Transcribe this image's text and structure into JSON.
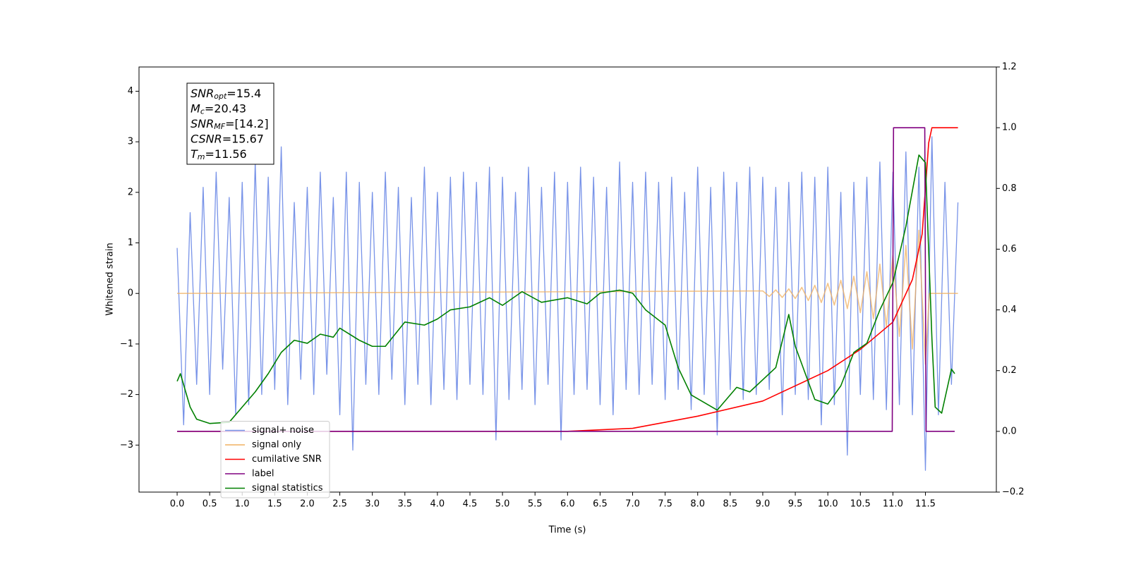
{
  "chart_data": {
    "type": "line",
    "x_label": "Time (s)",
    "y_label": "Whitened strain",
    "xlim": [
      -0.586,
      12.59
    ],
    "ylim": [
      -3.93,
      4.48
    ],
    "y2lim": [
      -0.2,
      1.2
    ],
    "xticks": [
      {
        "value": 0,
        "label": "0.0"
      },
      0.5,
      {
        "value": 1,
        "label": "1.0"
      },
      1.5,
      {
        "value": 2,
        "label": "2.0"
      },
      2.5,
      {
        "value": 3,
        "label": "3.0"
      },
      3.5,
      {
        "value": 4,
        "label": "4.0"
      },
      4.5,
      {
        "value": 5,
        "label": "5.0"
      },
      5.5,
      {
        "value": 6,
        "label": "6.0"
      },
      6.5,
      {
        "value": 7,
        "label": "7.0"
      },
      7.5,
      {
        "value": 8,
        "label": "8.0"
      },
      8.5,
      {
        "value": 9,
        "label": "9.0"
      },
      9.5,
      {
        "value": 10,
        "label": "10.0"
      },
      10.5,
      {
        "value": 11,
        "label": "11.0"
      },
      11.5
    ],
    "yticks": [
      {
        "value": -3,
        "label": "−3"
      },
      {
        "value": -2,
        "label": "−2"
      },
      {
        "value": -1,
        "label": "−1"
      },
      0,
      1,
      2,
      3,
      4
    ],
    "y2ticks": [
      {
        "value": -0.2,
        "label": "−0.2"
      },
      {
        "value": 0,
        "label": "0.0"
      },
      0.2,
      0.4,
      0.6,
      0.8,
      {
        "value": 1,
        "label": "1.0"
      },
      1.2
    ],
    "legend_loc": "lower left",
    "annotation": {
      "lines": [
        {
          "base": "SNR",
          "sub": "opt",
          "text": "=15.4"
        },
        {
          "base": "M",
          "sub": "c",
          "text": "=20.43"
        },
        {
          "base": "SNR",
          "sub": "MF",
          "text": "=[14.2]"
        },
        {
          "base": "CSNR",
          "text": "=15.67"
        },
        {
          "base": "T",
          "sub": "m",
          "text": "=11.56"
        }
      ]
    },
    "series": [
      {
        "name": "signal+ noise",
        "color": "#7893e8",
        "axis": "y",
        "x": [
          0,
          0.1,
          0.2,
          0.3,
          0.4,
          0.5,
          0.6,
          0.7,
          0.8,
          0.9,
          1,
          1.1,
          1.2,
          1.3,
          1.4,
          1.5,
          1.6,
          1.7,
          1.8,
          1.9,
          2,
          2.1,
          2.2,
          2.3,
          2.4,
          2.5,
          2.6,
          2.7,
          2.8,
          2.9,
          3,
          3.1,
          3.2,
          3.3,
          3.4,
          3.5,
          3.6,
          3.7,
          3.8,
          3.9,
          4,
          4.1,
          4.2,
          4.3,
          4.4,
          4.5,
          4.6,
          4.7,
          4.8,
          4.9,
          5,
          5.1,
          5.2,
          5.3,
          5.4,
          5.5,
          5.6,
          5.7,
          5.8,
          5.9,
          6,
          6.1,
          6.2,
          6.3,
          6.4,
          6.5,
          6.6,
          6.7,
          6.8,
          6.9,
          7,
          7.1,
          7.2,
          7.3,
          7.4,
          7.5,
          7.6,
          7.7,
          7.8,
          7.9,
          8,
          8.1,
          8.2,
          8.3,
          8.4,
          8.5,
          8.6,
          8.7,
          8.8,
          8.9,
          9,
          9.1,
          9.2,
          9.3,
          9.4,
          9.5,
          9.6,
          9.7,
          9.8,
          9.9,
          10,
          10.1,
          10.2,
          10.3,
          10.4,
          10.5,
          10.6,
          10.7,
          10.8,
          10.9,
          11,
          11.1,
          11.2,
          11.3,
          11.4,
          11.5,
          11.6,
          11.7,
          11.8,
          11.9,
          12
        ],
        "values": [
          0.9,
          -2.6,
          1.6,
          -1.8,
          2.1,
          -2.0,
          2.4,
          -1.5,
          1.9,
          -2.4,
          2.2,
          -2.2,
          2.6,
          -2.0,
          2.3,
          -1.9,
          2.9,
          -2.2,
          1.8,
          -1.7,
          2.1,
          -2.0,
          2.4,
          -1.6,
          1.9,
          -2.4,
          2.4,
          -3.1,
          2.2,
          -1.8,
          2.0,
          -2.0,
          2.4,
          -1.7,
          2.1,
          -2.2,
          1.9,
          -1.8,
          2.5,
          -2.2,
          2.0,
          -1.9,
          2.3,
          -2.1,
          2.4,
          -1.8,
          2.2,
          -2.0,
          2.5,
          -2.9,
          2.3,
          -2.1,
          2.0,
          -1.9,
          2.5,
          -2.2,
          2.1,
          -1.8,
          2.4,
          -2.9,
          2.2,
          -2.0,
          2.5,
          -1.9,
          2.3,
          -2.2,
          2.1,
          -2.4,
          2.6,
          -1.9,
          2.2,
          -2.0,
          2.4,
          -1.8,
          2.2,
          -2.1,
          2.3,
          -1.9,
          2.0,
          -2.3,
          2.5,
          -2.0,
          2.1,
          -2.8,
          2.4,
          -1.9,
          2.2,
          -2.1,
          2.5,
          -2.0,
          2.3,
          -1.9,
          2.1,
          -2.4,
          2.2,
          -2.0,
          2.4,
          -2.1,
          2.3,
          -2.6,
          2.5,
          -2.2,
          2.0,
          -3.2,
          2.2,
          -2.0,
          2.3,
          -2.1,
          2.6,
          -2.3,
          2.4,
          -2.2,
          2.8,
          -2.4,
          2.5,
          -3.5,
          3.1,
          -2.4,
          2.2,
          -1.8,
          1.8
        ]
      },
      {
        "name": "signal only",
        "color": "#f0b060",
        "axis": "y",
        "x": [
          0,
          9,
          9.1,
          9.2,
          9.3,
          9.4,
          9.5,
          9.6,
          9.7,
          9.8,
          9.9,
          10,
          10.1,
          10.2,
          10.3,
          10.4,
          10.5,
          10.6,
          10.7,
          10.8,
          10.9,
          11,
          11.1,
          11.2,
          11.3,
          11.4,
          11.5,
          11.56,
          12
        ],
        "values": [
          0,
          0.05,
          -0.06,
          0.07,
          -0.08,
          0.09,
          -0.1,
          0.12,
          -0.14,
          0.16,
          -0.18,
          0.2,
          -0.23,
          0.26,
          -0.3,
          0.34,
          -0.38,
          0.43,
          -0.5,
          0.58,
          -0.66,
          0.75,
          -0.85,
          0.95,
          -1.1,
          1.25,
          -1.4,
          0,
          0
        ]
      },
      {
        "name": "cumilative SNR",
        "color": "#ff0000",
        "axis": "y2",
        "x": [
          0,
          6,
          7,
          8,
          9,
          10,
          10.5,
          11,
          11.3,
          11.45,
          11.5,
          11.55,
          11.6,
          12
        ],
        "values": [
          0,
          0,
          0.01,
          0.05,
          0.1,
          0.2,
          0.27,
          0.36,
          0.5,
          0.65,
          0.8,
          0.95,
          1,
          1
        ]
      },
      {
        "name": "label",
        "color": "#800080",
        "axis": "y2",
        "x": [
          0,
          10.99,
          11.01,
          11.49,
          11.51,
          11.95
        ],
        "values": [
          0,
          0,
          1,
          1,
          0,
          0
        ]
      },
      {
        "name": "signal statistics",
        "color": "#008000",
        "axis": "y2",
        "x": [
          0,
          0.05,
          0.2,
          0.3,
          0.5,
          0.8,
          1,
          1.2,
          1.4,
          1.6,
          1.8,
          2,
          2.2,
          2.4,
          2.5,
          2.8,
          3,
          3.2,
          3.5,
          3.8,
          4,
          4.2,
          4.5,
          4.8,
          5,
          5.3,
          5.6,
          6,
          6.3,
          6.5,
          6.8,
          7,
          7.2,
          7.5,
          7.7,
          7.9,
          8.1,
          8.3,
          8.6,
          8.8,
          9.2,
          9.4,
          9.5,
          9.8,
          10,
          10.2,
          10.4,
          10.6,
          10.8,
          11,
          11.2,
          11.4,
          11.5,
          11.6,
          11.65,
          11.75,
          11.9,
          11.95
        ],
        "values": [
          0.165,
          0.19,
          0.08,
          0.04,
          0.026,
          0.03,
          0.08,
          0.13,
          0.19,
          0.26,
          0.3,
          0.29,
          0.32,
          0.31,
          0.34,
          0.3,
          0.28,
          0.28,
          0.36,
          0.35,
          0.37,
          0.4,
          0.41,
          0.44,
          0.415,
          0.46,
          0.425,
          0.44,
          0.42,
          0.455,
          0.465,
          0.455,
          0.4,
          0.35,
          0.21,
          0.12,
          0.095,
          0.07,
          0.145,
          0.13,
          0.21,
          0.385,
          0.28,
          0.105,
          0.09,
          0.15,
          0.26,
          0.29,
          0.4,
          0.49,
          0.675,
          0.91,
          0.885,
          0.305,
          0.08,
          0.06,
          0.205,
          0.19
        ]
      }
    ]
  }
}
